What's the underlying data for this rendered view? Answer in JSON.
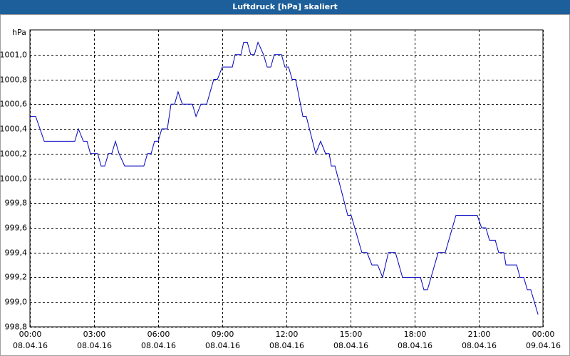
{
  "chart_data": {
    "type": "line",
    "title": "Luftdruck [hPa] skaliert",
    "ylabel": "hPa",
    "color": "#0000c0",
    "x": [
      0,
      0.27,
      0.67,
      2.1,
      2.27,
      2.5,
      2.67,
      2.83,
      3.17,
      3.33,
      3.5,
      3.67,
      3.83,
      4.0,
      4.17,
      4.43,
      5.33,
      5.5,
      5.67,
      5.83,
      6.0,
      6.17,
      6.43,
      6.6,
      6.77,
      6.93,
      7.13,
      7.6,
      7.77,
      8.0,
      8.27,
      8.6,
      8.77,
      9.0,
      9.47,
      9.6,
      9.87,
      10.0,
      10.17,
      10.33,
      10.5,
      10.67,
      10.93,
      11.1,
      11.27,
      11.43,
      11.77,
      11.93,
      12.1,
      12.27,
      12.43,
      12.77,
      12.93,
      13.37,
      13.6,
      13.83,
      14.0,
      14.1,
      14.27,
      14.87,
      15.03,
      15.53,
      15.77,
      16.0,
      16.27,
      16.5,
      16.77,
      17.1,
      17.43,
      18.27,
      18.43,
      18.6,
      19.1,
      19.43,
      19.93,
      20.93,
      21.13,
      21.33,
      21.5,
      21.77,
      21.93,
      22.17,
      22.27,
      22.77,
      22.93,
      23.1,
      23.27,
      23.43,
      23.77
    ],
    "values": [
      1000.5,
      1000.5,
      1000.3,
      1000.3,
      1000.4,
      1000.3,
      1000.3,
      1000.2,
      1000.2,
      1000.1,
      1000.1,
      1000.2,
      1000.2,
      1000.3,
      1000.2,
      1000.1,
      1000.1,
      1000.2,
      1000.2,
      1000.3,
      1000.3,
      1000.4,
      1000.4,
      1000.6,
      1000.6,
      1000.7,
      1000.6,
      1000.6,
      1000.5,
      1000.6,
      1000.6,
      1000.8,
      1000.8,
      1000.9,
      1000.9,
      1001.0,
      1001.0,
      1001.1,
      1001.1,
      1001.0,
      1001.0,
      1001.1,
      1001.0,
      1000.9,
      1000.9,
      1001.0,
      1001.0,
      1000.9,
      1000.9,
      1000.8,
      1000.8,
      1000.5,
      1000.5,
      1000.2,
      1000.3,
      1000.2,
      1000.2,
      1000.1,
      1000.1,
      999.7,
      999.7,
      999.4,
      999.4,
      999.3,
      999.3,
      999.2,
      999.4,
      999.4,
      999.2,
      999.2,
      999.1,
      999.1,
      999.4,
      999.4,
      999.7,
      999.7,
      999.6,
      999.6,
      999.5,
      999.5,
      999.4,
      999.4,
      999.3,
      999.3,
      999.2,
      999.2,
      999.1,
      999.1,
      998.9
    ],
    "xlim": [
      0,
      24
    ],
    "xticks": [
      {
        "value": 0,
        "label": "00:00\n08.04.16"
      },
      {
        "value": 3,
        "label": "03:00\n08.04.16"
      },
      {
        "value": 6,
        "label": "06:00\n08.04.16"
      },
      {
        "value": 9,
        "label": "09:00\n08.04.16"
      },
      {
        "value": 12,
        "label": "12:00\n08.04.16"
      },
      {
        "value": 15,
        "label": "15:00\n08.04.16"
      },
      {
        "value": 18,
        "label": "18:00\n08.04.16"
      },
      {
        "value": 21,
        "label": "21:00\n08.04.16"
      },
      {
        "value": 24,
        "label": "00:00\n09.04.16"
      }
    ],
    "ylim": [
      998.8,
      1001.2
    ],
    "yticks": [
      {
        "value": 998.8,
        "label": "998,8"
      },
      {
        "value": 999.0,
        "label": "999,0"
      },
      {
        "value": 999.2,
        "label": "999,2"
      },
      {
        "value": 999.4,
        "label": "999,4"
      },
      {
        "value": 999.6,
        "label": "999,6"
      },
      {
        "value": 999.8,
        "label": "999,8"
      },
      {
        "value": 1000.0,
        "label": "1000,0"
      },
      {
        "value": 1000.2,
        "label": "1000,2"
      },
      {
        "value": 1000.4,
        "label": "1000,4"
      },
      {
        "value": 1000.6,
        "label": "1000,6"
      },
      {
        "value": 1000.8,
        "label": "1000,8"
      },
      {
        "value": 1001.0,
        "label": "1001,0"
      }
    ],
    "grid": true
  }
}
